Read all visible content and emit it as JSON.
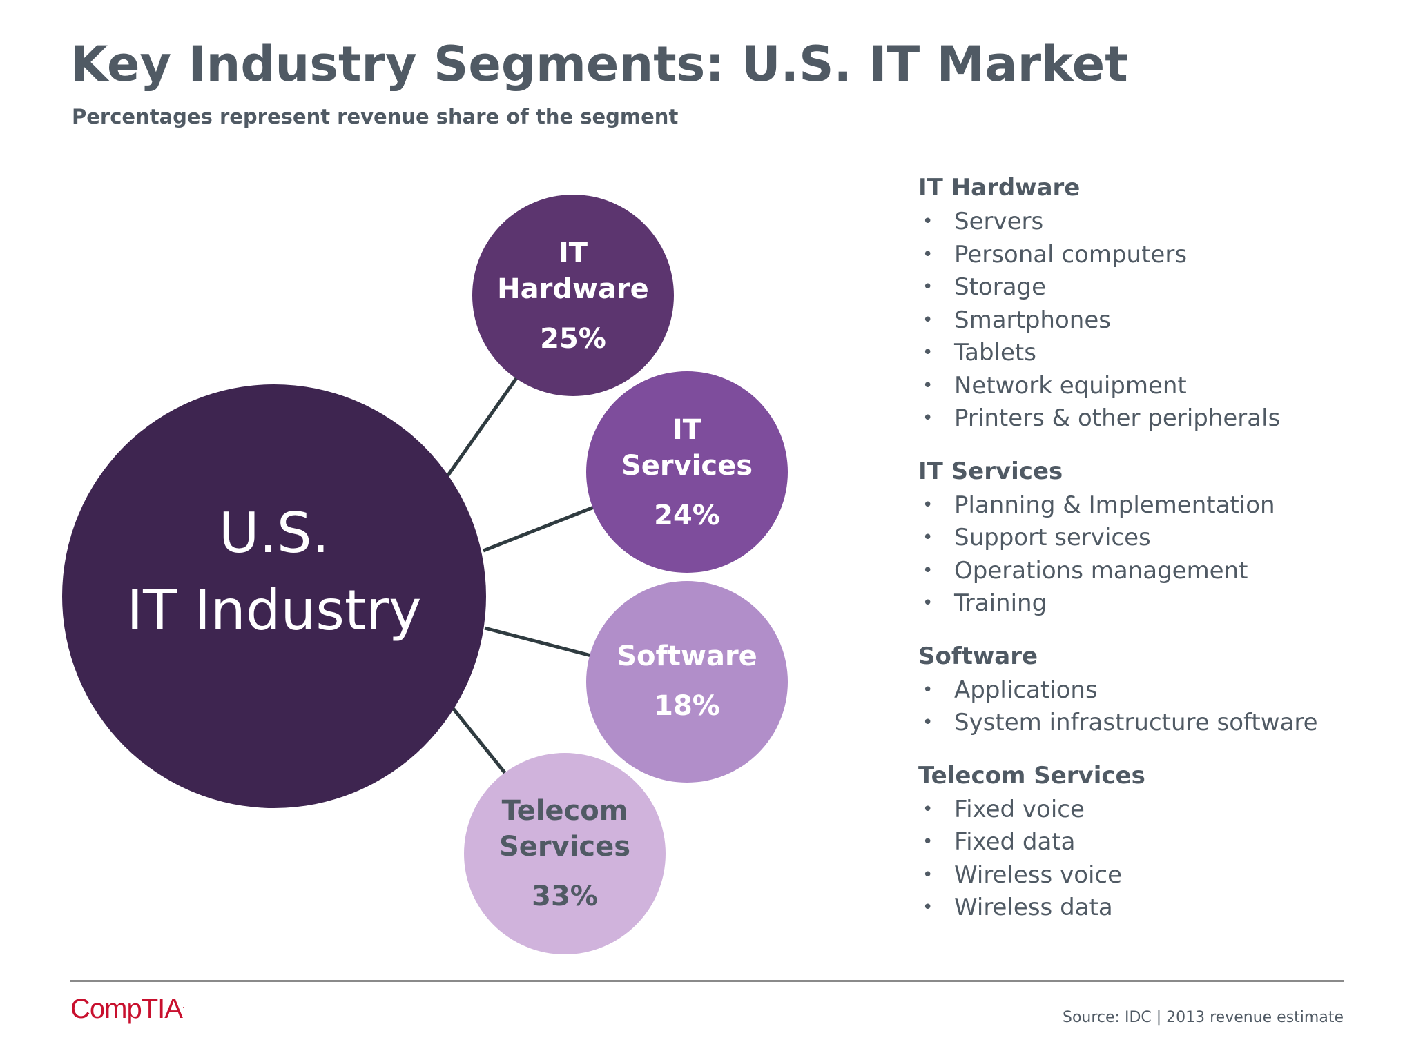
{
  "header": {
    "title": "Key Industry Segments: U.S. IT Market",
    "subtitle": "Percentages represent revenue share of the segment"
  },
  "center": {
    "line1": "U.S.",
    "line2": "IT Industry",
    "color": "#3e2550"
  },
  "segments": [
    {
      "id": "it-hardware",
      "lines": [
        "IT",
        "Hardware"
      ],
      "share_percent": 25,
      "share_label": "25%",
      "color": "#5c356f",
      "text_color": "#ffffff"
    },
    {
      "id": "it-services",
      "lines": [
        "IT",
        "Services"
      ],
      "share_percent": 24,
      "share_label": "24%",
      "color": "#7e4d9c",
      "text_color": "#ffffff"
    },
    {
      "id": "software",
      "lines": [
        "Software"
      ],
      "share_percent": 18,
      "share_label": "18%",
      "color": "#b18ec9",
      "text_color": "#ffffff"
    },
    {
      "id": "telecom-services",
      "lines": [
        "Telecom",
        "Services"
      ],
      "share_percent": 33,
      "share_label": "33%",
      "color": "#d0b3dc",
      "text_color": "#505a64"
    }
  ],
  "connector_color": "#2f3b40",
  "lists": [
    {
      "title": "IT Hardware",
      "items": [
        "Servers",
        "Personal computers",
        "Storage",
        "Smartphones",
        "Tablets",
        "Network equipment",
        "Printers & other peripherals"
      ]
    },
    {
      "title": "IT Services",
      "items": [
        "Planning & Implementation",
        "Support services",
        "Operations management",
        "Training"
      ]
    },
    {
      "title": "Software",
      "items": [
        "Applications",
        "System infrastructure software"
      ]
    },
    {
      "title": "Telecom Services",
      "items": [
        "Fixed voice",
        "Fixed data",
        "Wireless voice",
        "Wireless data"
      ]
    }
  ],
  "bullet_char": "•",
  "footer": {
    "logo_text": "CompTIA",
    "logo_mark": ".",
    "source": "Source: IDC | 2013 revenue estimate"
  }
}
